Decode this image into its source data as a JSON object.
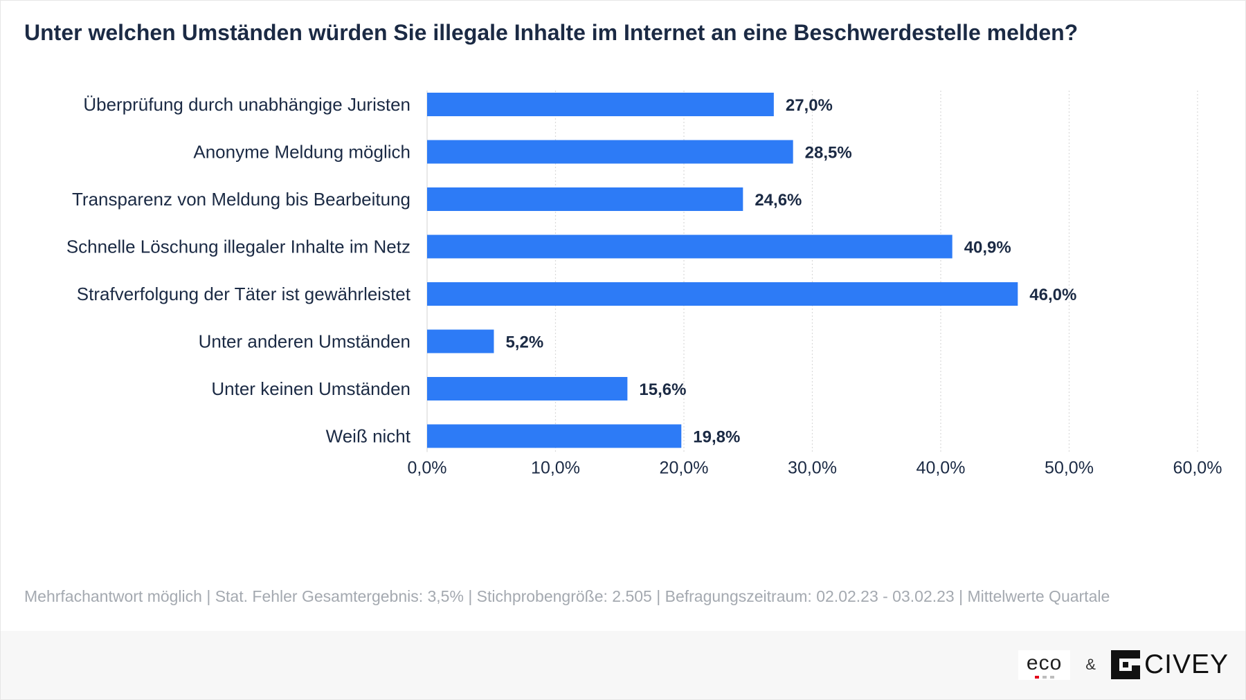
{
  "title": "Unter welchen Umständen würden Sie illegale Inhalte im Internet an eine Beschwerdestelle melden?",
  "footnote": "Mehrfachantwort möglich | Stat. Fehler Gesamtergebnis: 3,5% | Stichprobengröße: 2.505 | Befragungszeitraum: 02.02.23 - 03.02.23 | Mittelwerte Quartale",
  "logos": {
    "eco": "eco",
    "ampersand": "&",
    "civey": "CIVEY"
  },
  "colors": {
    "bar": "#2d7bf6",
    "text": "#1b2a44",
    "grid": "#d9d9d9"
  },
  "chart_data": {
    "type": "bar",
    "orientation": "horizontal",
    "categories": [
      "Überprüfung durch unabhängige Juristen",
      "Anonyme Meldung möglich",
      "Transparenz von Meldung bis Bearbeitung",
      "Schnelle Löschung illegaler Inhalte im Netz",
      "Strafverfolgung der Täter ist gewährleistet",
      "Unter anderen Umständen",
      "Unter keinen Umständen",
      "Weiß nicht"
    ],
    "values": [
      27.0,
      28.5,
      24.6,
      40.9,
      46.0,
      5.2,
      15.6,
      19.8
    ],
    "value_labels": [
      "27,0%",
      "28,5%",
      "24,6%",
      "40,9%",
      "46,0%",
      "5,2%",
      "15,6%",
      "19,8%"
    ],
    "xlim": [
      0,
      60
    ],
    "xticks": [
      0,
      10,
      20,
      30,
      40,
      50,
      60
    ],
    "xtick_labels": [
      "0,0%",
      "10,0%",
      "20,0%",
      "30,0%",
      "40,0%",
      "50,0%",
      "60,0%"
    ],
    "grid": true,
    "legend": "none"
  }
}
